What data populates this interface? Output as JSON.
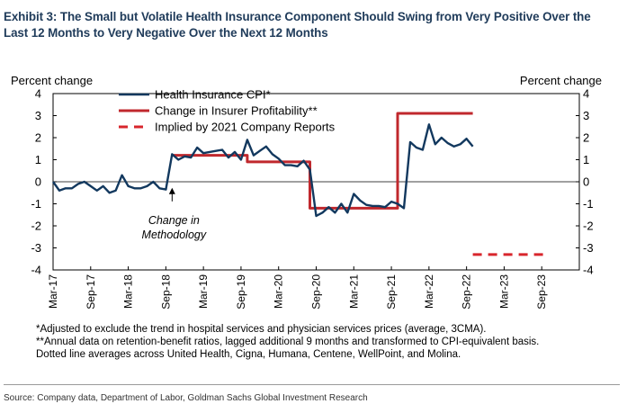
{
  "title": "Exhibit 3: The Small but Volatile Health Insurance Component Should Swing from Very Positive Over the Last 12 Months to Very Negative Over the Next 12 Months",
  "chart_data": {
    "type": "line",
    "ylabel_left": "Percent change",
    "ylabel_right": "Percent change",
    "ylim": [
      -4,
      4
    ],
    "yticks": [
      4,
      3,
      2,
      1,
      0,
      -1,
      -2,
      -3,
      -4
    ],
    "x_tick_labels": [
      "Mar-17",
      "Sep-17",
      "Mar-18",
      "Sep-18",
      "Mar-19",
      "Sep-19",
      "Mar-20",
      "Sep-20",
      "Mar-21",
      "Sep-21",
      "Mar-22",
      "Sep-22",
      "Mar-23",
      "Sep-23"
    ],
    "annotation": {
      "text_line1": "Change in",
      "text_line2": "Methodology",
      "x": 19,
      "y": -0.4
    },
    "colors": {
      "cpi": "#12385e",
      "profit": "#c0282d",
      "implied": "#d8262c"
    },
    "legend": {
      "position": "top-left",
      "entries": [
        "Health Insurance CPI*",
        "Change in Insurer Profitability**",
        "Implied by 2021 Company Reports"
      ]
    },
    "series": [
      {
        "name": "Health Insurance CPI*",
        "style": "solid-thin",
        "x": [
          0,
          1,
          2,
          3,
          4,
          5,
          6,
          7,
          8,
          9,
          10,
          11,
          12,
          13,
          14,
          15,
          16,
          17,
          18,
          19,
          20,
          21,
          22,
          23,
          24,
          25,
          26,
          27,
          28,
          29,
          30,
          31,
          32,
          33,
          34,
          35,
          36,
          37,
          38,
          39,
          40,
          41,
          42,
          43,
          44,
          45,
          46,
          47,
          48,
          49,
          50,
          51,
          52,
          53,
          54,
          55,
          56,
          57,
          58,
          59,
          60,
          61,
          62,
          63,
          64,
          65,
          66,
          67
        ],
        "values": [
          0.0,
          -0.4,
          -0.3,
          -0.3,
          -0.1,
          0.0,
          -0.2,
          -0.4,
          -0.2,
          -0.5,
          -0.4,
          0.3,
          -0.2,
          -0.3,
          -0.3,
          -0.2,
          0.0,
          -0.3,
          -0.35,
          1.25,
          1.0,
          1.15,
          1.1,
          1.55,
          1.3,
          1.35,
          1.4,
          1.45,
          1.1,
          1.35,
          1.0,
          1.9,
          1.2,
          1.4,
          1.6,
          1.25,
          1.05,
          0.75,
          0.75,
          0.7,
          0.95,
          0.55,
          -1.55,
          -1.4,
          -1.15,
          -1.4,
          -1.0,
          -1.4,
          -0.55,
          -0.85,
          -1.05,
          -1.1,
          -1.1,
          -1.15,
          -0.9,
          -1.0,
          -1.2,
          1.8,
          1.55,
          1.45,
          2.6,
          1.7,
          2.0,
          1.75,
          1.6,
          1.7,
          1.95,
          1.6
        ]
      },
      {
        "name": "Change in Insurer Profitability**",
        "style": "solid-thick",
        "x": [
          19,
          31,
          31,
          41,
          41,
          55,
          55,
          67
        ],
        "values": [
          1.2,
          1.2,
          0.9,
          0.9,
          -1.2,
          -1.2,
          3.1,
          3.1
        ]
      },
      {
        "name": "Implied by 2021 Company Reports",
        "style": "dashed",
        "x": [
          67,
          79
        ],
        "values": [
          -3.3,
          -3.3
        ]
      }
    ]
  },
  "footnotes": {
    "line1": "*Adjusted to exclude the trend in hospital services and physician services prices (average, 3CMA).",
    "line2": "**Annual data on retention-benefit ratios, lagged additional 9 months and transformed to CPI-equivalent basis.",
    "line3": "Dotted line averages across United Health, Cigna, Humana, Centene, WellPoint, and Molina."
  },
  "source": "Source: Company data, Department of Labor, Goldman Sachs Global Investment Research"
}
